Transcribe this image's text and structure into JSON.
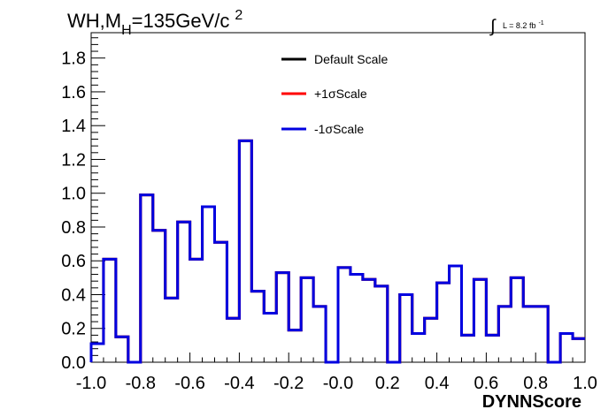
{
  "title": {
    "main": "WH,M",
    "subscript": "H",
    "value": "=135GeV/c",
    "superscript": "2"
  },
  "luminosity": {
    "symbol": "∫",
    "text": "L = 8.2 fb",
    "superscript": "-1"
  },
  "colors": {
    "default": "#000000",
    "plus": "#ff0000",
    "minus": "#0000e0",
    "frame": "#000000"
  },
  "chart_data": {
    "type": "line",
    "xlabel": "DYNNScore",
    "ylabel": "",
    "xlim": [
      -1.0,
      1.0
    ],
    "ylim": [
      0.0,
      1.95
    ],
    "xticks": [
      "-1.0",
      "-0.8",
      "-0.6",
      "-0.4",
      "-0.2",
      "-0.0",
      "0.2",
      "0.4",
      "0.6",
      "0.8",
      "1.0"
    ],
    "yticks": [
      "0.0",
      "0.2",
      "0.4",
      "0.6",
      "0.8",
      "1.0",
      "1.2",
      "1.4",
      "1.6",
      "1.8"
    ],
    "bin_edges": [
      -1.0,
      -0.95,
      -0.9,
      -0.85,
      -0.8,
      -0.75,
      -0.7,
      -0.65,
      -0.6,
      -0.55,
      -0.5,
      -0.45,
      -0.4,
      -0.35,
      -0.3,
      -0.25,
      -0.2,
      -0.15,
      -0.1,
      -0.05,
      0.0,
      0.05,
      0.1,
      0.15,
      0.2,
      0.25,
      0.3,
      0.35,
      0.4,
      0.45,
      0.5,
      0.55,
      0.6,
      0.65,
      0.7,
      0.75,
      0.8,
      0.85,
      0.9,
      0.95,
      1.0
    ],
    "series": [
      {
        "name": "Default Scale",
        "color": "#000000",
        "values": [
          0.11,
          0.61,
          0.15,
          0.0,
          0.99,
          0.78,
          0.38,
          0.83,
          0.61,
          0.92,
          0.71,
          0.26,
          1.31,
          0.42,
          0.29,
          0.53,
          0.19,
          0.5,
          0.33,
          0.0,
          0.56,
          0.52,
          0.49,
          0.45,
          0.0,
          0.4,
          0.17,
          0.26,
          0.47,
          0.57,
          0.16,
          0.49,
          0.16,
          0.33,
          0.5,
          0.33,
          0.33,
          0.0,
          0.17,
          0.14
        ]
      },
      {
        "name": "+1σScale",
        "color": "#ff0000",
        "values": [
          0.11,
          0.61,
          0.15,
          0.0,
          0.99,
          0.78,
          0.38,
          0.83,
          0.61,
          0.92,
          0.71,
          0.26,
          1.31,
          0.42,
          0.29,
          0.53,
          0.19,
          0.5,
          0.33,
          0.0,
          0.56,
          0.52,
          0.49,
          0.45,
          0.0,
          0.4,
          0.17,
          0.26,
          0.47,
          0.57,
          0.16,
          0.49,
          0.16,
          0.33,
          0.5,
          0.33,
          0.33,
          0.0,
          0.17,
          0.14
        ]
      },
      {
        "name": "-1σScale",
        "color": "#0000e0",
        "values": [
          0.11,
          0.61,
          0.15,
          0.0,
          0.99,
          0.78,
          0.38,
          0.83,
          0.61,
          0.92,
          0.71,
          0.26,
          1.31,
          0.42,
          0.29,
          0.53,
          0.19,
          0.5,
          0.33,
          0.0,
          0.56,
          0.52,
          0.49,
          0.45,
          0.0,
          0.4,
          0.17,
          0.26,
          0.47,
          0.57,
          0.16,
          0.49,
          0.16,
          0.33,
          0.5,
          0.33,
          0.33,
          0.0,
          0.17,
          0.14
        ]
      }
    ],
    "legend_position": "top-center",
    "grid": false
  }
}
